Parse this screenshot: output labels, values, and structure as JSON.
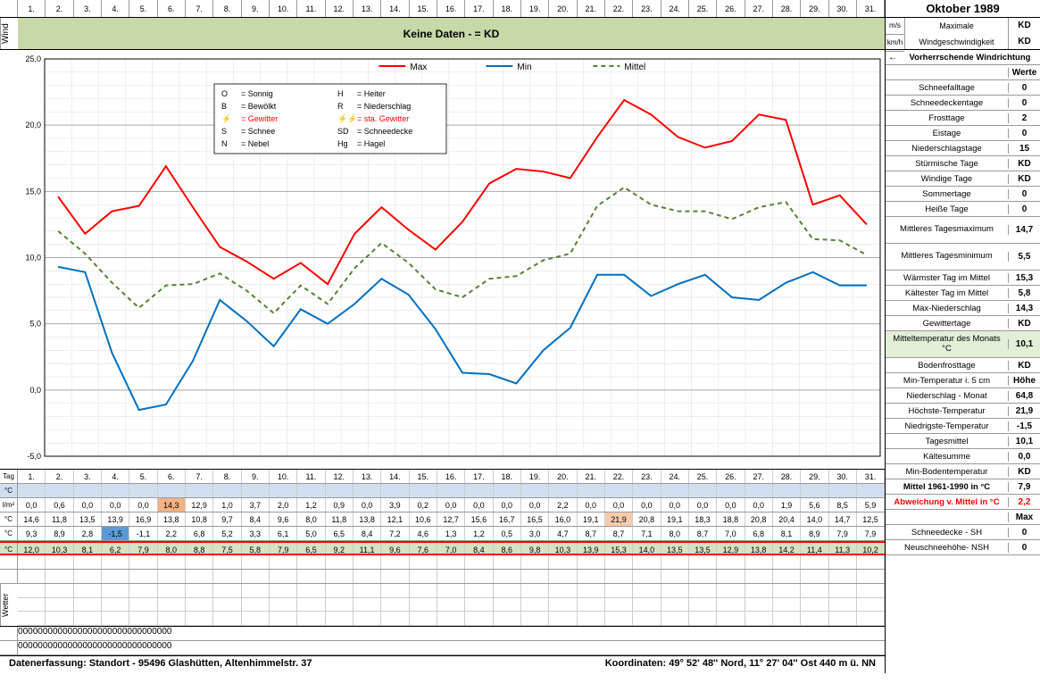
{
  "title": "Oktober 1989",
  "days": [
    "1.",
    "2.",
    "3.",
    "4.",
    "5.",
    "6.",
    "7.",
    "8.",
    "9.",
    "10.",
    "11.",
    "12.",
    "13.",
    "14.",
    "15.",
    "16.",
    "17.",
    "18.",
    "19.",
    "20.",
    "21.",
    "22.",
    "23.",
    "24.",
    "25.",
    "26.",
    "27.",
    "28.",
    "29.",
    "30.",
    "31."
  ],
  "wind": {
    "label": "Wind",
    "text": "Keine Daten -  = KD"
  },
  "units": {
    "ms": "m/s",
    "kmh": "km/h",
    "max_label": "Maximale",
    "speed_label": "Windgeschwindigkeit",
    "v1": "KD",
    "v2": "KD"
  },
  "winddir": {
    "arrow": "←",
    "label": "Vorherrschende Windrichtung"
  },
  "werte": "Werte",
  "chart": {
    "ylim": [
      -5,
      25
    ],
    "ytick_step": 5,
    "series": {
      "max": {
        "label": "Max",
        "color": "#ff0000",
        "dash": "none",
        "values": [
          14.6,
          11.8,
          13.5,
          13.9,
          16.9,
          13.8,
          10.8,
          9.7,
          8.4,
          9.6,
          8.0,
          11.8,
          13.8,
          12.1,
          10.6,
          12.7,
          15.6,
          16.7,
          16.5,
          16.0,
          19.1,
          21.9,
          20.8,
          19.1,
          18.3,
          18.8,
          20.8,
          20.4,
          14.0,
          14.7,
          12.5
        ]
      },
      "min": {
        "label": "Min",
        "color": "#0070c0",
        "dash": "none",
        "values": [
          9.3,
          8.9,
          2.8,
          -1.5,
          -1.1,
          2.2,
          6.8,
          5.2,
          3.3,
          6.1,
          5.0,
          6.5,
          8.4,
          7.2,
          4.6,
          1.3,
          1.2,
          0.5,
          3.0,
          4.7,
          8.7,
          8.7,
          7.1,
          8.0,
          8.7,
          7.0,
          6.8,
          8.1,
          8.9,
          7.9,
          7.9
        ]
      },
      "mittel": {
        "label": "Mittel",
        "color": "#548235",
        "dash": "5,4",
        "values": [
          12.0,
          10.3,
          8.1,
          6.2,
          7.9,
          8.0,
          8.8,
          7.5,
          5.8,
          7.9,
          6.5,
          9.2,
          11.1,
          9.6,
          7.6,
          7.0,
          8.4,
          8.6,
          9.8,
          10.3,
          13.9,
          15.3,
          14.0,
          13.5,
          13.5,
          12.9,
          13.8,
          14.2,
          11.4,
          11.3,
          10.2
        ]
      }
    },
    "legend_box": {
      "items": [
        {
          "sym": "O",
          "txt": "= Sonnig"
        },
        {
          "sym": "H",
          "txt": "= Heiter"
        },
        {
          "sym": "B",
          "txt": "= Bewölkt"
        },
        {
          "sym": "R",
          "txt": "= Niederschlag"
        },
        {
          "sym": "⚡",
          "txt": "= Gewitter",
          "color": "red"
        },
        {
          "sym": "⚡⚡",
          "txt": "= sta. Gewitter",
          "color": "red"
        },
        {
          "sym": "S",
          "txt": "= Schnee"
        },
        {
          "sym": "SD",
          "txt": "= Schneedecke"
        },
        {
          "sym": "N",
          "txt": "= Nebel"
        },
        {
          "sym": "Hg",
          "txt": "= Hagel"
        }
      ]
    }
  },
  "rows": {
    "tag_label": "Tag",
    "degc": "°C",
    "niederschlag": {
      "lbl": "l/m²",
      "v": [
        "0,0",
        "0,6",
        "0,0",
        "0,0",
        "0,0",
        "14,3",
        "12,9",
        "1,0",
        "3,7",
        "2,0",
        "1,2",
        "0,9",
        "0,0",
        "3,9",
        "0,2",
        "0,0",
        "0,0",
        "0,0",
        "0,0",
        "2,2",
        "0,0",
        "0,0",
        "0,0",
        "0,0",
        "0,0",
        "0,0",
        "0,0",
        "1,9",
        "5,6",
        "8,5",
        "5,9"
      ],
      "hl": {
        "5": "hl-orange"
      }
    },
    "hoechste": {
      "lbl": "°C",
      "v": [
        "14,6",
        "11,8",
        "13,5",
        "13,9",
        "16,9",
        "13,8",
        "10,8",
        "9,7",
        "8,4",
        "9,6",
        "8,0",
        "11,8",
        "13,8",
        "12,1",
        "10,6",
        "12,7",
        "15,6",
        "16,7",
        "16,5",
        "16,0",
        "19,1",
        "21,9",
        "20,8",
        "19,1",
        "18,3",
        "18,8",
        "20,8",
        "20,4",
        "14,0",
        "14,7",
        "12,5"
      ],
      "hl": {
        "21": "hl-pink"
      }
    },
    "niedrigste": {
      "lbl": "°C",
      "v": [
        "9,3",
        "8,9",
        "2,8",
        "-1,5",
        "-1,1",
        "2,2",
        "6,8",
        "5,2",
        "3,3",
        "6,1",
        "5,0",
        "6,5",
        "8,4",
        "7,2",
        "4,6",
        "1,3",
        "1,2",
        "0,5",
        "3,0",
        "4,7",
        "8,7",
        "8,7",
        "7,1",
        "8,0",
        "8,7",
        "7,0",
        "6,8",
        "8,1",
        "8,9",
        "7,9",
        "7,9"
      ],
      "hl": {
        "3": "hl-blue"
      }
    },
    "tagesmittel": {
      "lbl": "°C",
      "v": [
        "12,0",
        "10,3",
        "8,1",
        "6,2",
        "7,9",
        "8,0",
        "8,8",
        "7,5",
        "5,8",
        "7,9",
        "6,5",
        "9,2",
        "11,1",
        "9,6",
        "7,6",
        "7,0",
        "8,4",
        "8,6",
        "9,8",
        "10,3",
        "13,9",
        "15,3",
        "14,0",
        "13,5",
        "13,5",
        "12,9",
        "13,8",
        "14,2",
        "11,4",
        "11,3",
        "10,2"
      ]
    }
  },
  "schnee_zeros": [
    "0",
    "0",
    "0",
    "0",
    "0",
    "0",
    "0",
    "0",
    "0",
    "0",
    "0",
    "0",
    "0",
    "0",
    "0",
    "0",
    "0",
    "0",
    "0",
    "0",
    "0",
    "0",
    "0",
    "0",
    "0",
    "0",
    "0",
    "0",
    "0",
    "0",
    "0"
  ],
  "right_rows": [
    {
      "l": "Schneefalltage",
      "v": "0"
    },
    {
      "l": "Schneedeckentage",
      "v": "0"
    },
    {
      "l": "Frosttage",
      "v": "2"
    },
    {
      "l": "Eistage",
      "v": "0"
    },
    {
      "l": "Niederschlagstage",
      "v": "15"
    },
    {
      "l": "Stürmische Tage",
      "v": "KD"
    },
    {
      "l": "Windige Tage",
      "v": "KD"
    },
    {
      "l": "Sommertage",
      "v": "0"
    },
    {
      "l": "Heiße Tage",
      "v": "0"
    },
    {
      "l": "Mittleres Tagesmaximum",
      "v": "14,7",
      "dbl": true
    },
    {
      "l": "Mittleres Tagesminimum",
      "v": "5,5",
      "dbl": true
    },
    {
      "l": "Wärmster Tag im Mittel",
      "v": "15,3"
    },
    {
      "l": "Kältester Tag im Mittel",
      "v": "5,8"
    },
    {
      "l": "Max-Niederschlag",
      "v": "14,3"
    },
    {
      "l": "Gewittertage",
      "v": "KD"
    },
    {
      "l": "Mitteltemperatur des Monats °C",
      "v": "10,1",
      "dbl": true,
      "green": true
    },
    {
      "l": "Bodenfrosttage",
      "v": "KD"
    }
  ],
  "right_rows_lower": [
    {
      "l": "Min-Temperatur i. 5 cm",
      "v": "Höhe"
    },
    {
      "l": "Niederschlag - Monat",
      "v": "64,8"
    },
    {
      "l": "Höchste-Temperatur",
      "v": "21,9"
    },
    {
      "l": "Niedrigste-Temperatur",
      "v": "-1,5"
    },
    {
      "l": "Tagesmittel",
      "v": "10,1"
    },
    {
      "l": "Kältesumme",
      "v": "0,0"
    },
    {
      "l": "Min-Bodentemperatur",
      "v": "KD"
    },
    {
      "l": "Mittel 1961-1990 in °C",
      "v": "7,9",
      "bold": true
    },
    {
      "l": "Abweichung v. Mittel in °C",
      "v": "2,2",
      "red": true
    },
    {
      "l": "",
      "v": "Max"
    },
    {
      "l": "Schneedecke -   SH",
      "v": "0"
    },
    {
      "l": "Neuschneehöhe- NSH",
      "v": "0"
    }
  ],
  "footer": {
    "left": "Datenerfassung:  Standort -   95496  Glashütten, Altenhimmelstr. 37",
    "right": "Koordinaten:  49° 52' 48'' Nord,   11° 27' 04'' Ost   440 m ü. NN"
  }
}
